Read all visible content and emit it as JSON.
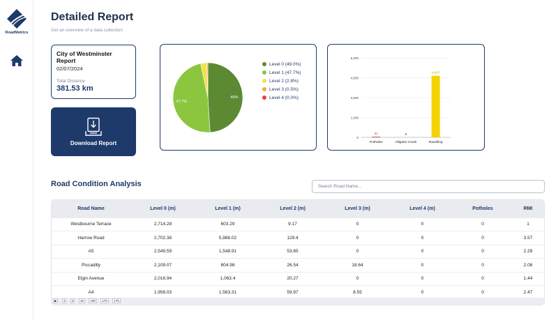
{
  "brand": {
    "name": "RoadMetrics"
  },
  "page": {
    "title": "Detailed Report",
    "subtitle": "Get an overview of a data collection"
  },
  "report": {
    "name": "City of Westminster Report",
    "date": "02/07/2024",
    "distance_label": "Total Distance",
    "distance_value": "381.53 km"
  },
  "download": {
    "label": "Download Report"
  },
  "colors": {
    "primary": "#1e3a6b",
    "level0": "#5b8a32",
    "level1": "#8cc63f",
    "level2": "#f6e04b",
    "level3": "#f2a93b",
    "level4": "#e8433a",
    "ravelling": "#f6d300"
  },
  "chart_data": [
    {
      "type": "pie",
      "series": [
        {
          "name": "Level 0 (49.0%)",
          "value": 49.0,
          "label": "49%",
          "color": "#5b8a32"
        },
        {
          "name": "Level 1 (47.7%)",
          "value": 47.7,
          "label": "47.7%",
          "color": "#8cc63f"
        },
        {
          "name": "Level 2 (2.8%)",
          "value": 2.8,
          "label": "",
          "color": "#f6e04b"
        },
        {
          "name": "Level 3 (0.5%)",
          "value": 0.5,
          "label": "",
          "color": "#f2a93b"
        },
        {
          "name": "Level 4 (0.0%)",
          "value": 0.0,
          "label": "",
          "color": "#e8433a"
        }
      ],
      "legend": "right"
    },
    {
      "type": "bar",
      "categories": [
        "Potholes",
        "Alligator Crack",
        "Ravelling"
      ],
      "values": [
        21,
        0,
        4647
      ],
      "data_labels": [
        "21",
        "0",
        "4,647"
      ],
      "label_colors": [
        "#c0392b",
        "#1e3a6b",
        "#c9a800"
      ],
      "bar_colors": [
        "#c0392b",
        "#1e3a6b",
        "#f6d300"
      ],
      "ylim": [
        0,
        6000
      ],
      "yticks": [
        0,
        1500,
        3000,
        4500,
        6000
      ],
      "ytick_labels": [
        "0",
        "1,500",
        "3,000",
        "4,500",
        "6,000"
      ],
      "grid": true
    }
  ],
  "analysis": {
    "title": "Road Condition Analysis",
    "search_placeholder": "Search Road Name...",
    "columns": [
      "Road Name",
      "Level 0 (m)",
      "Level 1 (m)",
      "Level 2 (m)",
      "Level 3 (m)",
      "Level 4 (m)",
      "Potholes",
      "RMI"
    ],
    "rows": [
      [
        "Westbourne Terrace",
        "2,714.28",
        "603.29",
        "9.17",
        "0",
        "0",
        "0",
        "1"
      ],
      [
        "Harrow Road",
        "2,702.38",
        "5,988.02",
        "129.4",
        "0",
        "0",
        "0",
        "3.57"
      ],
      [
        "A5",
        "2,549.59",
        "1,548.91",
        "53.65",
        "0",
        "0",
        "0",
        "2.29"
      ],
      [
        "Piccadilly",
        "2,109.07",
        "804.98",
        "26.54",
        "18.64",
        "0",
        "0",
        "2.08"
      ],
      [
        "Elgin Avenue",
        "2,016.94",
        "1,063.4",
        "20.27",
        "0",
        "0",
        "0",
        "1.44"
      ],
      [
        "A4",
        "1,958.03",
        "1,563.31",
        "59.97",
        "8.55",
        "0",
        "0",
        "2.47"
      ]
    ],
    "pager": [
      "▶",
      "1",
      "2",
      "10",
      "100",
      "170",
      "175"
    ]
  }
}
